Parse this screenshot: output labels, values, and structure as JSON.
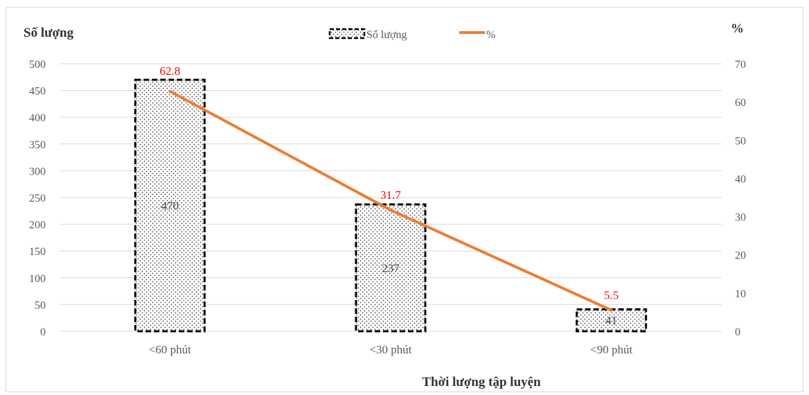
{
  "chart_data": {
    "type": "bar",
    "combo": "bar + line (secondary axis)",
    "title": "",
    "ylabel_left": "Số lượng",
    "ylabel_right": "%",
    "xlabel": "Thời lượng tập luyện",
    "categories": [
      "<60 phút",
      "<30 phút",
      "<90 phút"
    ],
    "series": [
      {
        "name": "Số lượng",
        "type": "bar",
        "axis": "left",
        "values": [
          470,
          237,
          41
        ],
        "labels": [
          "470",
          "237",
          "41"
        ],
        "pattern": "dotted fill, dashed black border"
      },
      {
        "name": "%",
        "type": "line",
        "axis": "right",
        "values": [
          62.8,
          31.7,
          5.5
        ],
        "labels": [
          "62.8",
          "31.7",
          "5.5"
        ]
      }
    ],
    "ylim_left": [
      0,
      500
    ],
    "yticks_left": [
      "0",
      "50",
      "100",
      "150",
      "200",
      "250",
      "300",
      "350",
      "400",
      "450",
      "500"
    ],
    "ylim_right": [
      0,
      70
    ],
    "yticks_right": [
      "0",
      "10",
      "20",
      "30",
      "40",
      "50",
      "60",
      "70"
    ],
    "grid": true,
    "legend_position": "top-center",
    "colors": {
      "line": "#ed7d31",
      "line_labels": "#ff0000",
      "bar_border": "#000000",
      "grid": "#d9d9d9",
      "text": "#595959"
    }
  }
}
